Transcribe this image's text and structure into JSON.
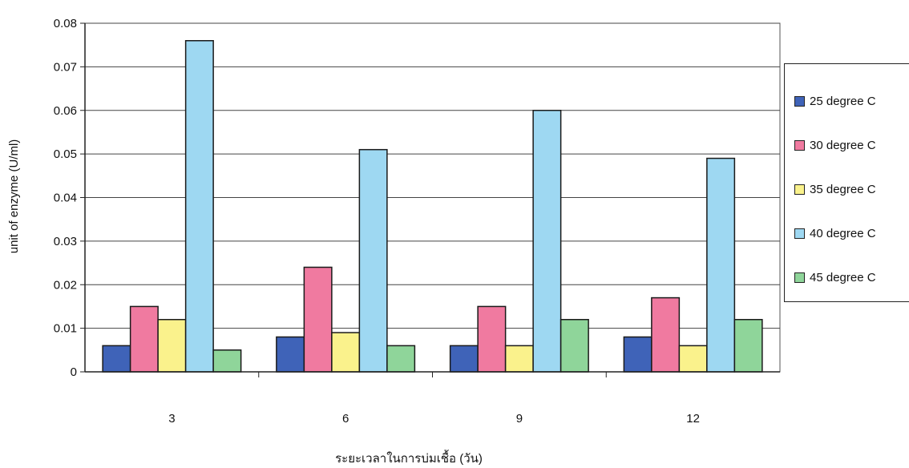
{
  "chart_data": {
    "type": "bar",
    "title": "",
    "xlabel": "ระยะเวลาในการบ่มเชื้อ (วัน)",
    "ylabel": "unit of enzyme (U/ml)",
    "categories": [
      "3",
      "6",
      "9",
      "12"
    ],
    "ylim": [
      0,
      0.08
    ],
    "yticks": [
      "0",
      "0.01",
      "0.02",
      "0.03",
      "0.04",
      "0.05",
      "0.06",
      "0.07",
      "0.08"
    ],
    "grid": "horizontal",
    "legend_position": "right",
    "series": [
      {
        "name": "25 degree C",
        "color": "#3f63b8",
        "values": [
          0.006,
          0.008,
          0.006,
          0.008
        ]
      },
      {
        "name": "30 degree C",
        "color": "#f07aa0",
        "values": [
          0.015,
          0.024,
          0.015,
          0.017
        ]
      },
      {
        "name": "35 degree C",
        "color": "#faf28c",
        "values": [
          0.012,
          0.009,
          0.006,
          0.006
        ]
      },
      {
        "name": "40 degree C",
        "color": "#9ed8f2",
        "values": [
          0.076,
          0.051,
          0.06,
          0.049
        ]
      },
      {
        "name": "45 degree C",
        "color": "#8fd59a",
        "values": [
          0.005,
          0.006,
          0.012,
          0.012
        ]
      }
    ]
  }
}
